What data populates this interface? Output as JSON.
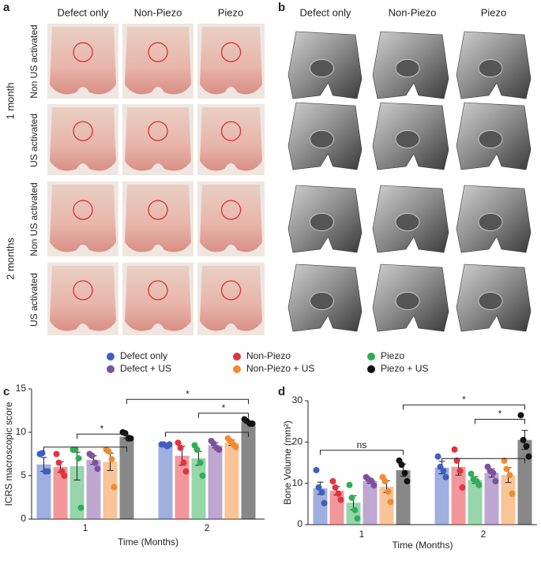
{
  "figure": {
    "panel_labels": [
      "a",
      "b",
      "c",
      "d"
    ],
    "columns_a": [
      "Defect only",
      "Non-Piezo",
      "Piezo"
    ],
    "columns_b": [
      "Defect only",
      "Non-Piezo",
      "Piezo"
    ],
    "rows": [
      "1 month",
      "2 months"
    ],
    "row_sub": [
      "Non US activated",
      "US activated",
      "Non US activated",
      "US activated"
    ]
  },
  "chart_data": [
    {
      "type": "bar",
      "ylabel": "ICRS macroscopic score",
      "xlabel": "Time (Months)",
      "categories": [
        "1",
        "2"
      ],
      "ylim": [
        0,
        15
      ],
      "yticks": [
        0,
        5,
        10,
        15
      ],
      "annotations": [
        "*",
        "*",
        "*"
      ],
      "series": [
        {
          "name": "Defect only",
          "color": "#3f5fc0",
          "values": [
            6.3,
            8.5
          ],
          "errors": [
            0.8,
            0.1
          ],
          "points": [
            [
              7.5,
              7.6,
              5.5,
              5.5
            ],
            [
              8.6,
              8.6,
              8.4,
              8.6
            ]
          ]
        },
        {
          "name": "Non-Piezo",
          "color": "#e5323c",
          "values": [
            6.0,
            7.3
          ],
          "errors": [
            0.6,
            1.1
          ],
          "points": [
            [
              7.5,
              6.5,
              5.5,
              5.0
            ],
            [
              8.8,
              8.2,
              6.5,
              5.5
            ]
          ]
        },
        {
          "name": "Piezo",
          "color": "#2eae55",
          "values": [
            6.1,
            7.0
          ],
          "errors": [
            1.6,
            0.8
          ],
          "points": [
            [
              8.0,
              8.0,
              7.0,
              1.3
            ],
            [
              8.5,
              8.0,
              6.5,
              5.0
            ]
          ]
        },
        {
          "name": "Defect + US",
          "color": "#7d50a2",
          "values": [
            6.8,
            8.5
          ],
          "errors": [
            0.5,
            0.3
          ],
          "points": [
            [
              7.5,
              7.3,
              6.5,
              5.8
            ],
            [
              9.0,
              8.7,
              8.2,
              8.0
            ]
          ]
        },
        {
          "name": "Non-Piezo + US",
          "color": "#f38a2f",
          "values": [
            6.6,
            8.8
          ],
          "errors": [
            1.0,
            0.3
          ],
          "points": [
            [
              8.0,
              7.8,
              6.9,
              3.7
            ],
            [
              9.3,
              9.0,
              8.6,
              8.3
            ]
          ]
        },
        {
          "name": "Piezo + US",
          "color": "#111111",
          "values": [
            9.5,
            11.2
          ],
          "errors": [
            0.2,
            0.1
          ],
          "points": [
            [
              10.0,
              9.9,
              9.3,
              9.3
            ],
            [
              11.5,
              11.3,
              11.0,
              11.0
            ]
          ]
        }
      ]
    },
    {
      "type": "bar",
      "ylabel": "Bone Volume (mm²)",
      "xlabel": "Time (Months)",
      "categories": [
        "1",
        "2"
      ],
      "ylim": [
        0,
        30
      ],
      "yticks": [
        0,
        10,
        20,
        30
      ],
      "annotations": [
        "ns",
        "*",
        "*"
      ],
      "series": [
        {
          "name": "Defect only",
          "color": "#3f5fc0",
          "values": [
            8.8,
            13.8
          ],
          "errors": [
            1.5,
            1.5
          ],
          "points": [
            [
              13.2,
              9.0,
              7.8,
              5.2
            ],
            [
              16.5,
              14.0,
              13.0,
              11.5
            ]
          ]
        },
        {
          "name": "Non-Piezo",
          "color": "#e5323c",
          "values": [
            8.2,
            14.0
          ],
          "errors": [
            1.0,
            2.0
          ],
          "points": [
            [
              10.5,
              9.0,
              7.5,
              6.0
            ],
            [
              18.2,
              15.5,
              13.0,
              9.0
            ]
          ]
        },
        {
          "name": "Piezo",
          "color": "#2eae55",
          "values": [
            5.3,
            10.8
          ],
          "errors": [
            1.7,
            0.8
          ],
          "points": [
            [
              9.6,
              6.5,
              3.5,
              1.5
            ],
            [
              12.3,
              11.0,
              10.5,
              9.6
            ]
          ]
        },
        {
          "name": "Defect + US",
          "color": "#7d50a2",
          "values": [
            10.6,
            12.5
          ],
          "errors": [
            0.6,
            1.0
          ],
          "points": [
            [
              11.5,
              11.0,
              10.5,
              9.5
            ],
            [
              14.0,
              13.0,
              12.5,
              10.5
            ]
          ]
        },
        {
          "name": "Non-Piezo + US",
          "color": "#f38a2f",
          "values": [
            9.2,
            12.0
          ],
          "errors": [
            1.4,
            1.8
          ],
          "points": [
            [
              11.5,
              10.5,
              8.0,
              5.5
            ],
            [
              15.5,
              13.5,
              12.0,
              7.5
            ]
          ]
        },
        {
          "name": "Piezo + US",
          "color": "#111111",
          "values": [
            13.2,
            20.5
          ],
          "errors": [
            1.5,
            2.3
          ],
          "points": [
            [
              15.5,
              14.5,
              12.5,
              10.5
            ],
            [
              26.5,
              20.5,
              19.0,
              16.5
            ]
          ]
        }
      ]
    }
  ]
}
